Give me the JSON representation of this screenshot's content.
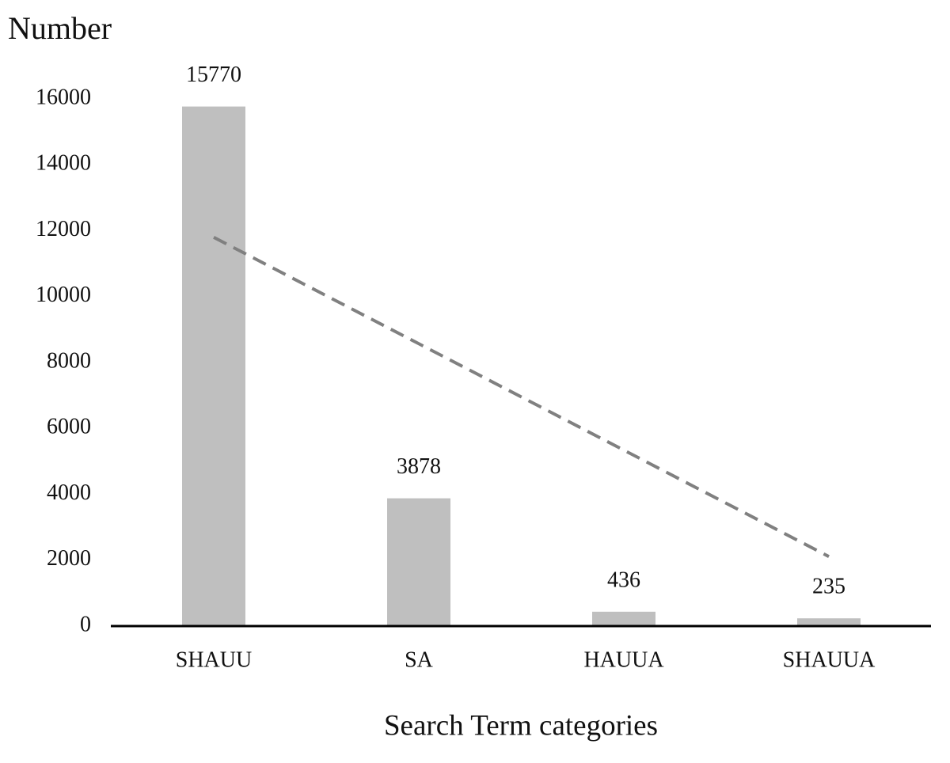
{
  "chart_data": {
    "type": "bar",
    "y_label": "Number",
    "x_label": "Search Term categories",
    "categories": [
      "SHAUU",
      "SA",
      "HAUUA",
      "SHAUUA"
    ],
    "values": [
      15770,
      3878,
      436,
      235
    ],
    "color": "#bfbfbf",
    "trendline": {
      "values": [
        11800,
        8570,
        5340,
        2110
      ],
      "color": "#808080",
      "style": "dashed"
    },
    "ylim": [
      0,
      16000
    ],
    "yticks": [
      0,
      2000,
      4000,
      6000,
      8000,
      10000,
      12000,
      14000,
      16000
    ]
  }
}
